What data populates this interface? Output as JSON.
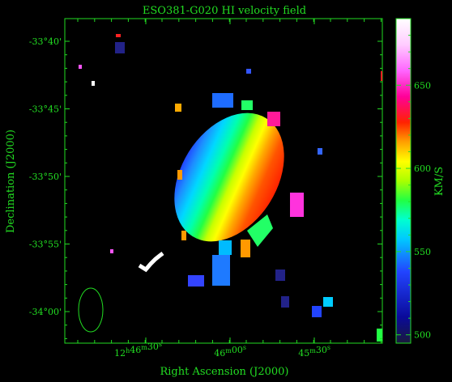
{
  "chart_data": {
    "type": "heatmap",
    "title": "ESO381-G020  HI velocity field",
    "xlabel": "Right Ascension (J2000)",
    "ylabel": "Declination (J2000)",
    "x_ticks": [
      {
        "label_main": "12",
        "sup1": "h",
        "mid": "46",
        "sup2": "m",
        "tail": "30",
        "sup3": "s",
        "value": "12h46m30s"
      },
      {
        "label_main": "",
        "sup1": "",
        "mid": "46",
        "sup2": "m",
        "tail": "00",
        "sup3": "s",
        "value": "12h46m00s"
      },
      {
        "label_main": "",
        "sup1": "",
        "mid": "45",
        "sup2": "m",
        "tail": "30",
        "sup3": "s",
        "value": "12h45m30s"
      }
    ],
    "y_ticks": [
      "-33°40'",
      "-33°45'",
      "-33°50'",
      "-33°55'",
      "-34°00'"
    ],
    "colorbar": {
      "label": "KM/S",
      "min": 495,
      "max": 690,
      "ticks": [
        500,
        550,
        600,
        650
      ]
    },
    "velocity_gradient": {
      "low_side": "east (left)",
      "high_side": "west (right)",
      "v_min": 520,
      "v_max": 660
    },
    "grid": false,
    "beam": "ellipse, lower-left"
  },
  "colors": {
    "axes": "#22dd22",
    "background": "#000000"
  }
}
